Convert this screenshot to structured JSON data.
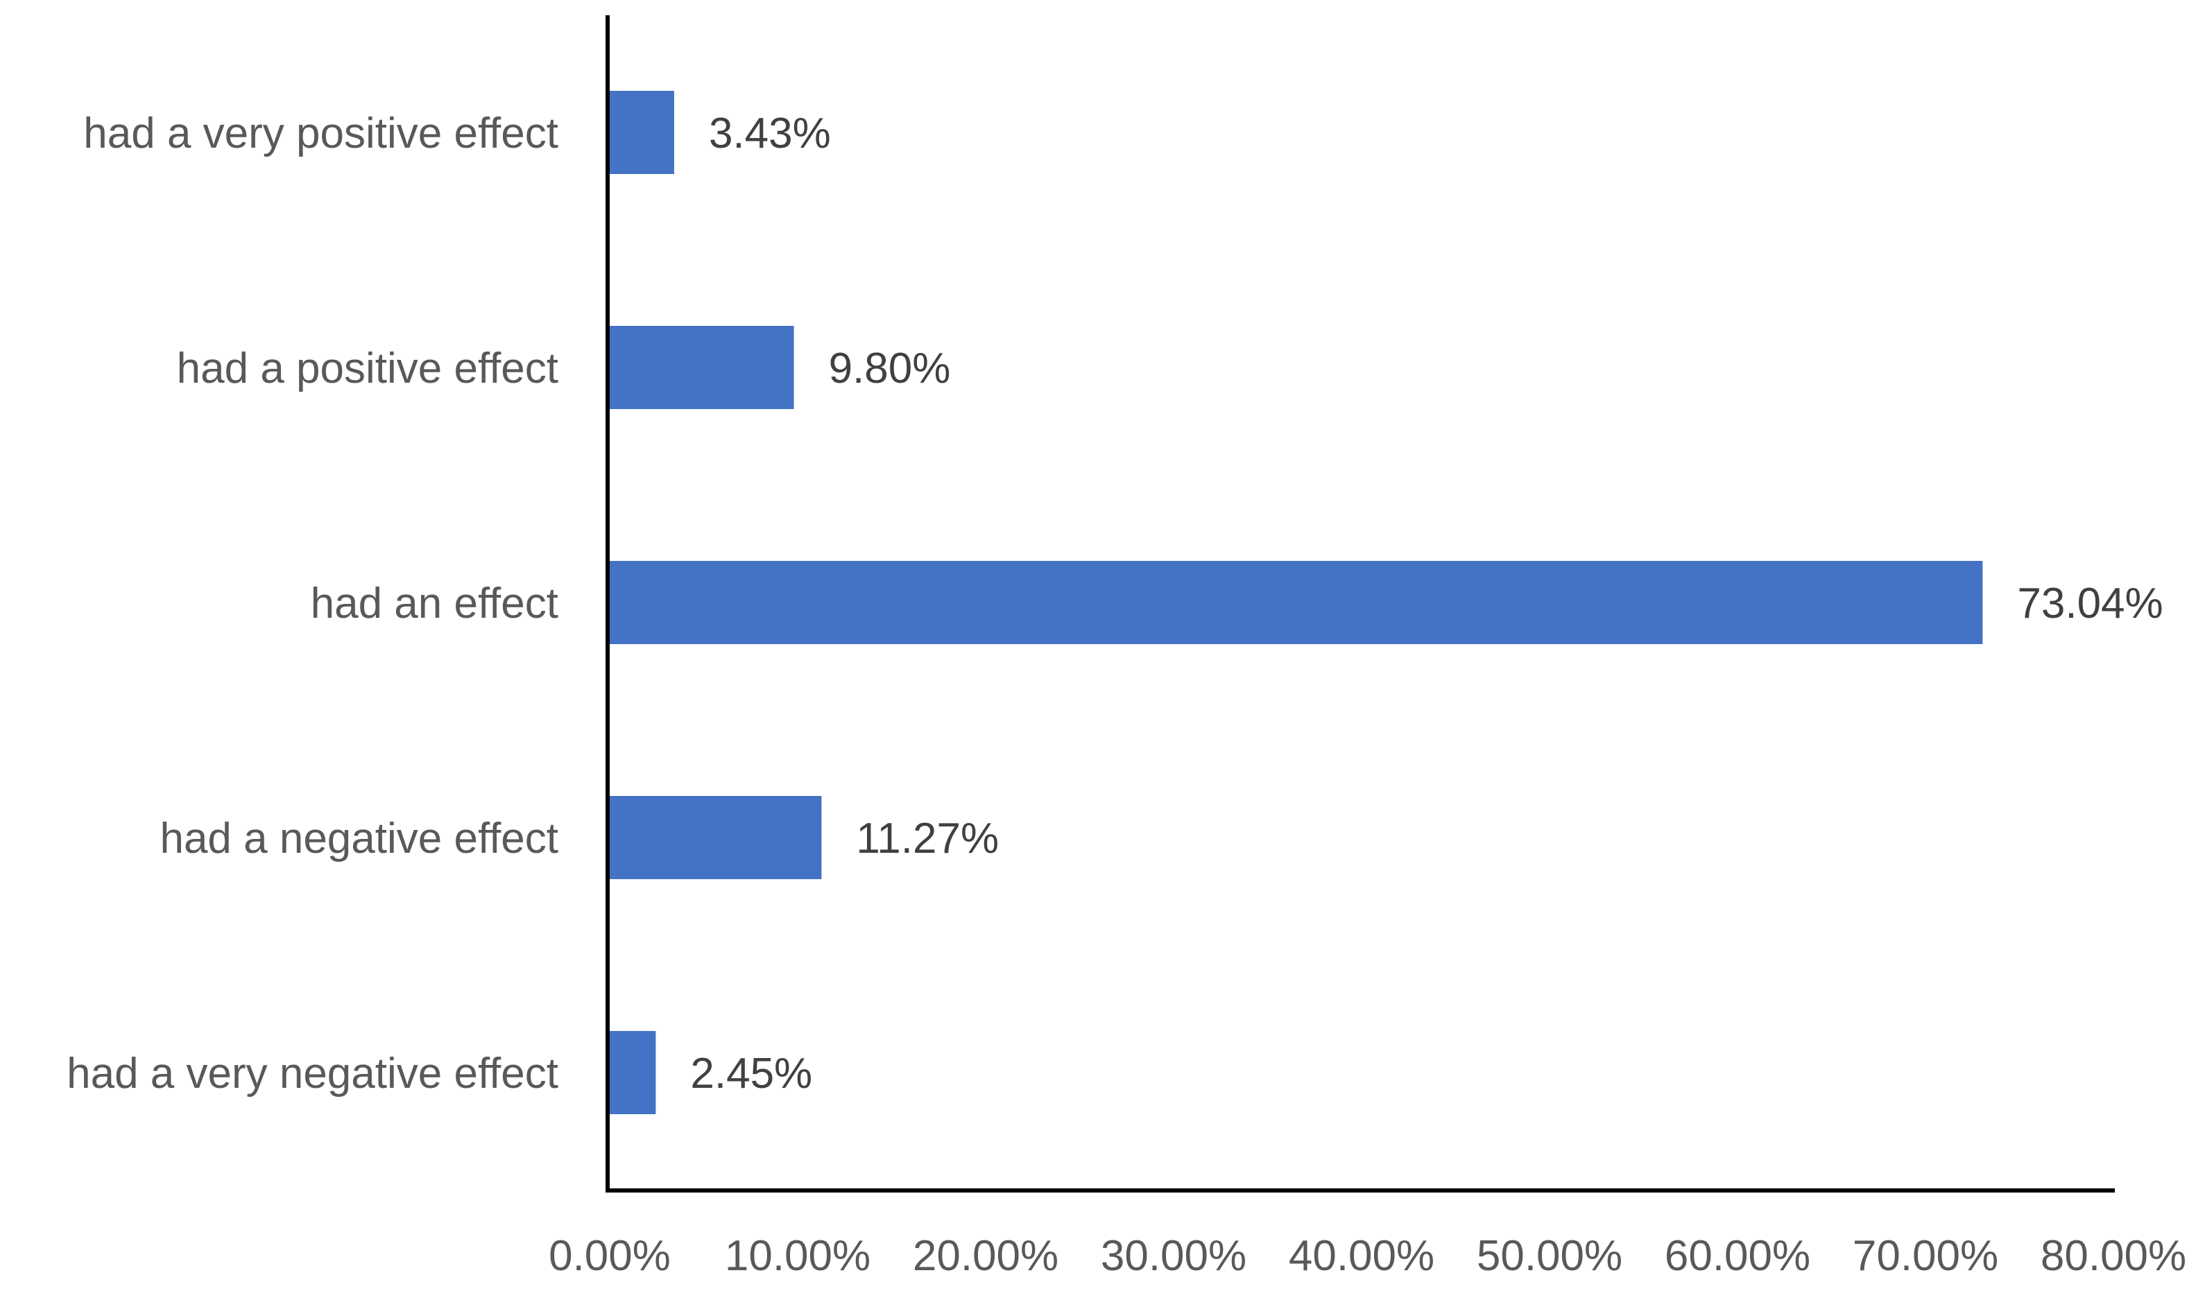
{
  "chart_data": {
    "type": "bar",
    "orientation": "horizontal",
    "title": "",
    "xlabel": "",
    "ylabel": "",
    "categories": [
      "had a very positive effect",
      "had a positive effect",
      "had an effect",
      "had a negative effect",
      "had a very negative effect"
    ],
    "values": [
      3.43,
      9.8,
      73.04,
      11.27,
      2.45
    ],
    "value_labels": [
      "3.43%",
      "9.80%",
      "73.04%",
      "11.27%",
      "2.45%"
    ],
    "xlim": [
      0,
      80
    ],
    "x_ticks": [
      0,
      10,
      20,
      30,
      40,
      50,
      60,
      70,
      80
    ],
    "x_tick_labels": [
      "0.00%",
      "10.00%",
      "20.00%",
      "30.00%",
      "40.00%",
      "50.00%",
      "60.00%",
      "70.00%",
      "80.00%"
    ],
    "grid": false,
    "legend": "none",
    "bar_color": "#4472C4"
  }
}
